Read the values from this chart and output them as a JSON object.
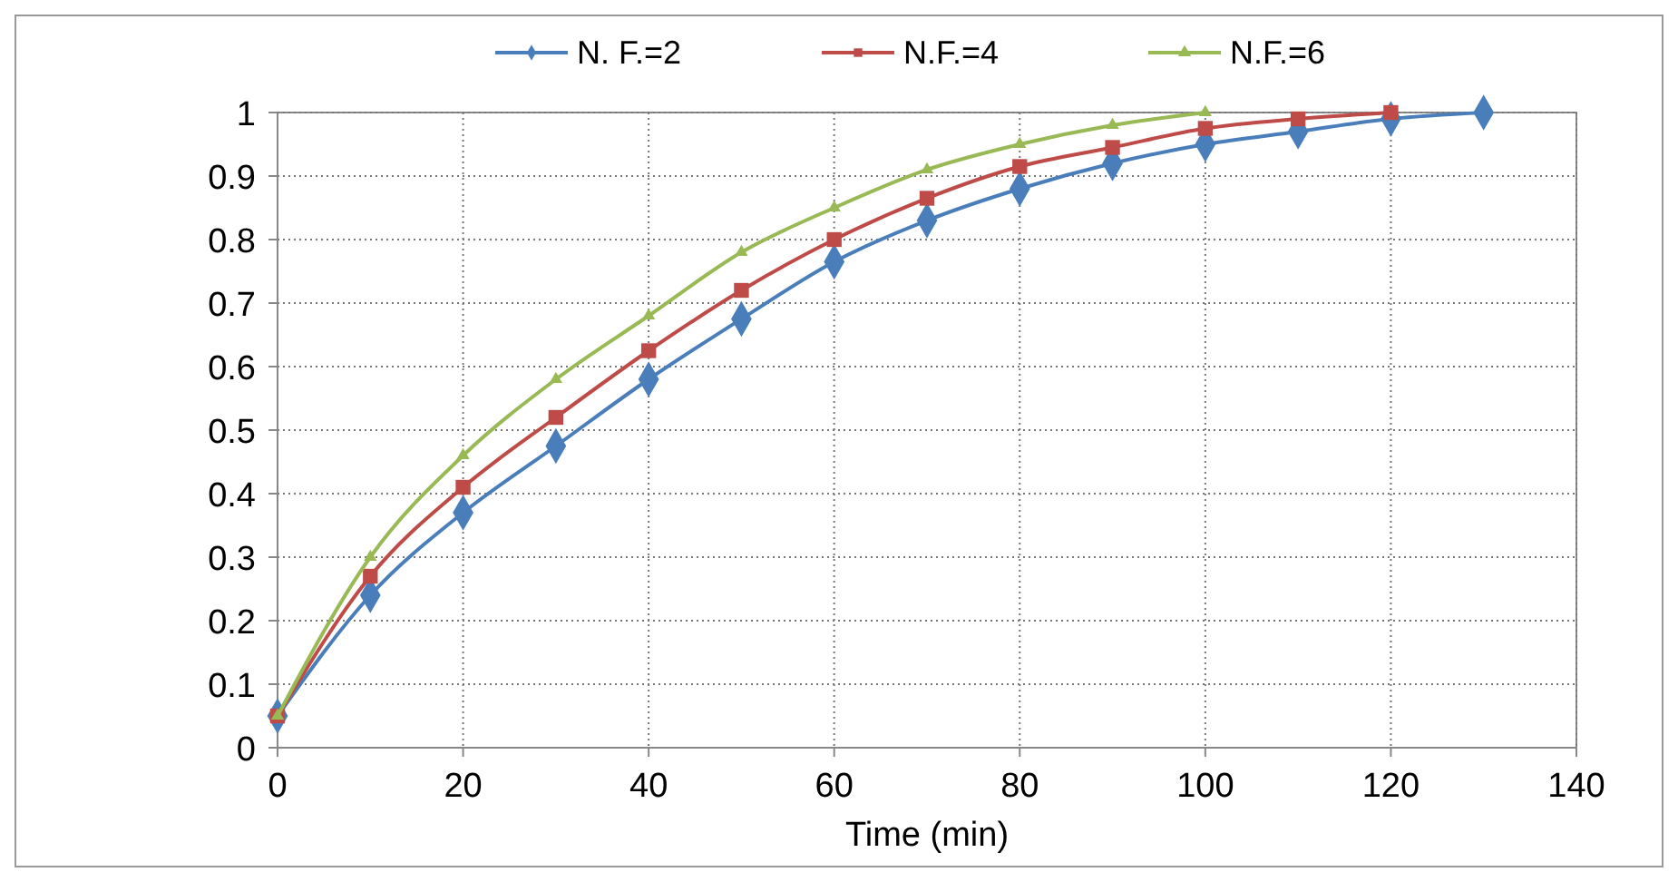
{
  "chart_data": {
    "type": "line",
    "xlabel": "Time (min)",
    "xlim": [
      0,
      140
    ],
    "xticks": [
      0,
      20,
      40,
      60,
      80,
      100,
      120,
      140
    ],
    "ylim": [
      0,
      1
    ],
    "yticks": [
      0,
      0.1,
      0.2,
      0.3,
      0.4,
      0.5,
      0.6,
      0.7,
      0.8,
      0.9,
      1
    ],
    "grid": true,
    "legend": "top",
    "line_style": "solid",
    "series": [
      {
        "name": "N. F.=2",
        "color": "#4a7ebb",
        "marker": "diamond",
        "x": [
          0,
          10,
          20,
          30,
          40,
          50,
          60,
          70,
          80,
          90,
          100,
          110,
          120,
          130
        ],
        "values": [
          0.05,
          0.24,
          0.37,
          0.475,
          0.58,
          0.675,
          0.765,
          0.83,
          0.88,
          0.92,
          0.95,
          0.97,
          0.99,
          1
        ]
      },
      {
        "name": "N.F.=4",
        "color": "#be4b48",
        "marker": "square",
        "x": [
          0,
          10,
          20,
          30,
          40,
          50,
          60,
          70,
          80,
          90,
          100,
          110,
          120
        ],
        "values": [
          0.05,
          0.27,
          0.41,
          0.52,
          0.625,
          0.72,
          0.8,
          0.865,
          0.915,
          0.945,
          0.975,
          0.99,
          1
        ]
      },
      {
        "name": "N.F.=6",
        "color": "#98b954",
        "marker": "triangle",
        "x": [
          0,
          10,
          20,
          30,
          40,
          50,
          60,
          70,
          80,
          90,
          100
        ],
        "values": [
          0.05,
          0.3,
          0.46,
          0.58,
          0.68,
          0.78,
          0.85,
          0.91,
          0.95,
          0.98,
          1
        ]
      }
    ]
  }
}
